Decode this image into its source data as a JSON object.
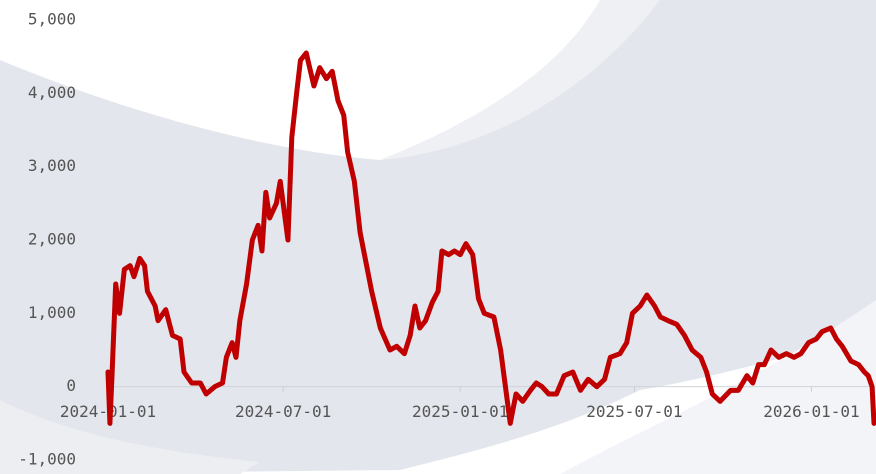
{
  "chart_data": {
    "type": "line",
    "x": [
      "2024-01-01",
      "2024-01-03",
      "2024-01-05",
      "2024-01-09",
      "2024-01-13",
      "2024-01-18",
      "2024-01-24",
      "2024-01-28",
      "2024-02-03",
      "2024-02-08",
      "2024-02-11",
      "2024-02-19",
      "2024-02-22",
      "2024-03-01",
      "2024-03-08",
      "2024-03-16",
      "2024-03-20",
      "2024-03-28",
      "2024-04-06",
      "2024-04-12",
      "2024-04-21",
      "2024-04-29",
      "2024-05-03",
      "2024-05-09",
      "2024-05-13",
      "2024-05-17",
      "2024-05-24",
      "2024-05-30",
      "2024-06-05",
      "2024-06-09",
      "2024-06-13",
      "2024-06-17",
      "2024-06-24",
      "2024-06-28",
      "2024-07-02",
      "2024-07-06",
      "2024-07-10",
      "2024-07-15",
      "2024-07-19",
      "2024-07-25",
      "2024-08-02",
      "2024-08-08",
      "2024-08-15",
      "2024-08-21",
      "2024-08-27",
      "2024-09-02",
      "2024-09-06",
      "2024-09-13",
      "2024-09-19",
      "2024-09-25",
      "2024-10-01",
      "2024-10-10",
      "2024-10-20",
      "2024-10-27",
      "2024-11-04",
      "2024-11-10",
      "2024-11-15",
      "2024-11-20",
      "2024-11-26",
      "2024-12-03",
      "2024-12-09",
      "2024-12-13",
      "2024-12-20",
      "2024-12-26",
      "2025-01-01",
      "2025-01-07",
      "2025-01-14",
      "2025-01-20",
      "2025-01-26",
      "2025-02-05",
      "2025-02-12",
      "2025-02-16",
      "2025-02-22",
      "2025-02-28",
      "2025-03-07",
      "2025-03-15",
      "2025-03-21",
      "2025-03-27",
      "2025-04-03",
      "2025-04-11",
      "2025-04-19",
      "2025-04-28",
      "2025-05-06",
      "2025-05-14",
      "2025-05-23",
      "2025-05-31",
      "2025-06-06",
      "2025-06-16",
      "2025-06-23",
      "2025-06-29",
      "2025-07-07",
      "2025-07-14",
      "2025-07-22",
      "2025-07-28",
      "2025-08-05",
      "2025-08-14",
      "2025-08-22",
      "2025-08-30",
      "2025-09-08",
      "2025-09-14",
      "2025-09-20",
      "2025-09-28",
      "2025-10-09",
      "2025-10-17",
      "2025-10-26",
      "2025-11-01",
      "2025-11-07",
      "2025-11-13",
      "2025-11-20",
      "2025-11-28",
      "2025-12-06",
      "2025-12-14",
      "2025-12-21",
      "2025-12-29",
      "2026-01-06",
      "2026-01-12",
      "2026-01-21",
      "2026-01-27",
      "2026-02-02",
      "2026-02-11",
      "2026-02-19",
      "2026-02-25",
      "2026-03-01",
      "2026-03-05",
      "2026-03-07"
    ],
    "values": [
      200,
      -500,
      100,
      1400,
      1000,
      1600,
      1650,
      1500,
      1750,
      1650,
      1300,
      1100,
      900,
      1050,
      700,
      650,
      200,
      50,
      50,
      -100,
      0,
      50,
      400,
      600,
      400,
      900,
      1400,
      2000,
      2200,
      1850,
      2650,
      2300,
      2500,
      2800,
      2400,
      2000,
      3400,
      4000,
      4450,
      4550,
      4100,
      4350,
      4200,
      4300,
      3900,
      3700,
      3200,
      2800,
      2100,
      1700,
      1300,
      800,
      500,
      550,
      450,
      700,
      1100,
      800,
      900,
      1150,
      1300,
      1850,
      1800,
      1850,
      1800,
      1950,
      1800,
      1200,
      1000,
      950,
      500,
      100,
      -500,
      -100,
      -200,
      -50,
      50,
      0,
      -100,
      -100,
      150,
      200,
      -50,
      100,
      0,
      100,
      400,
      450,
      600,
      1000,
      1100,
      1250,
      1100,
      950,
      900,
      850,
      700,
      500,
      400,
      200,
      -100,
      -200,
      -50,
      -50,
      150,
      50,
      300,
      300,
      500,
      400,
      450,
      400,
      450,
      600,
      650,
      750,
      800,
      650,
      550,
      350,
      300,
      200,
      150,
      0,
      -500
    ],
    "color": "#c00000",
    "xlim": [
      "2024-01-01",
      "2026-03-07"
    ],
    "xticks": [
      "2024-01-01",
      "2024-07-01",
      "2025-01-01",
      "2025-07-01",
      "2026-01-01"
    ],
    "ylim": [
      -1000,
      5000
    ],
    "yticks": [
      {
        "value": -1000,
        "label": "-1,000"
      },
      0,
      {
        "value": 1000,
        "label": "1,000"
      },
      {
        "value": 2000,
        "label": "2,000"
      },
      {
        "value": 3000,
        "label": "3,000"
      },
      {
        "value": 4000,
        "label": "4,000"
      },
      {
        "value": 5000,
        "label": "5,000"
      }
    ]
  }
}
